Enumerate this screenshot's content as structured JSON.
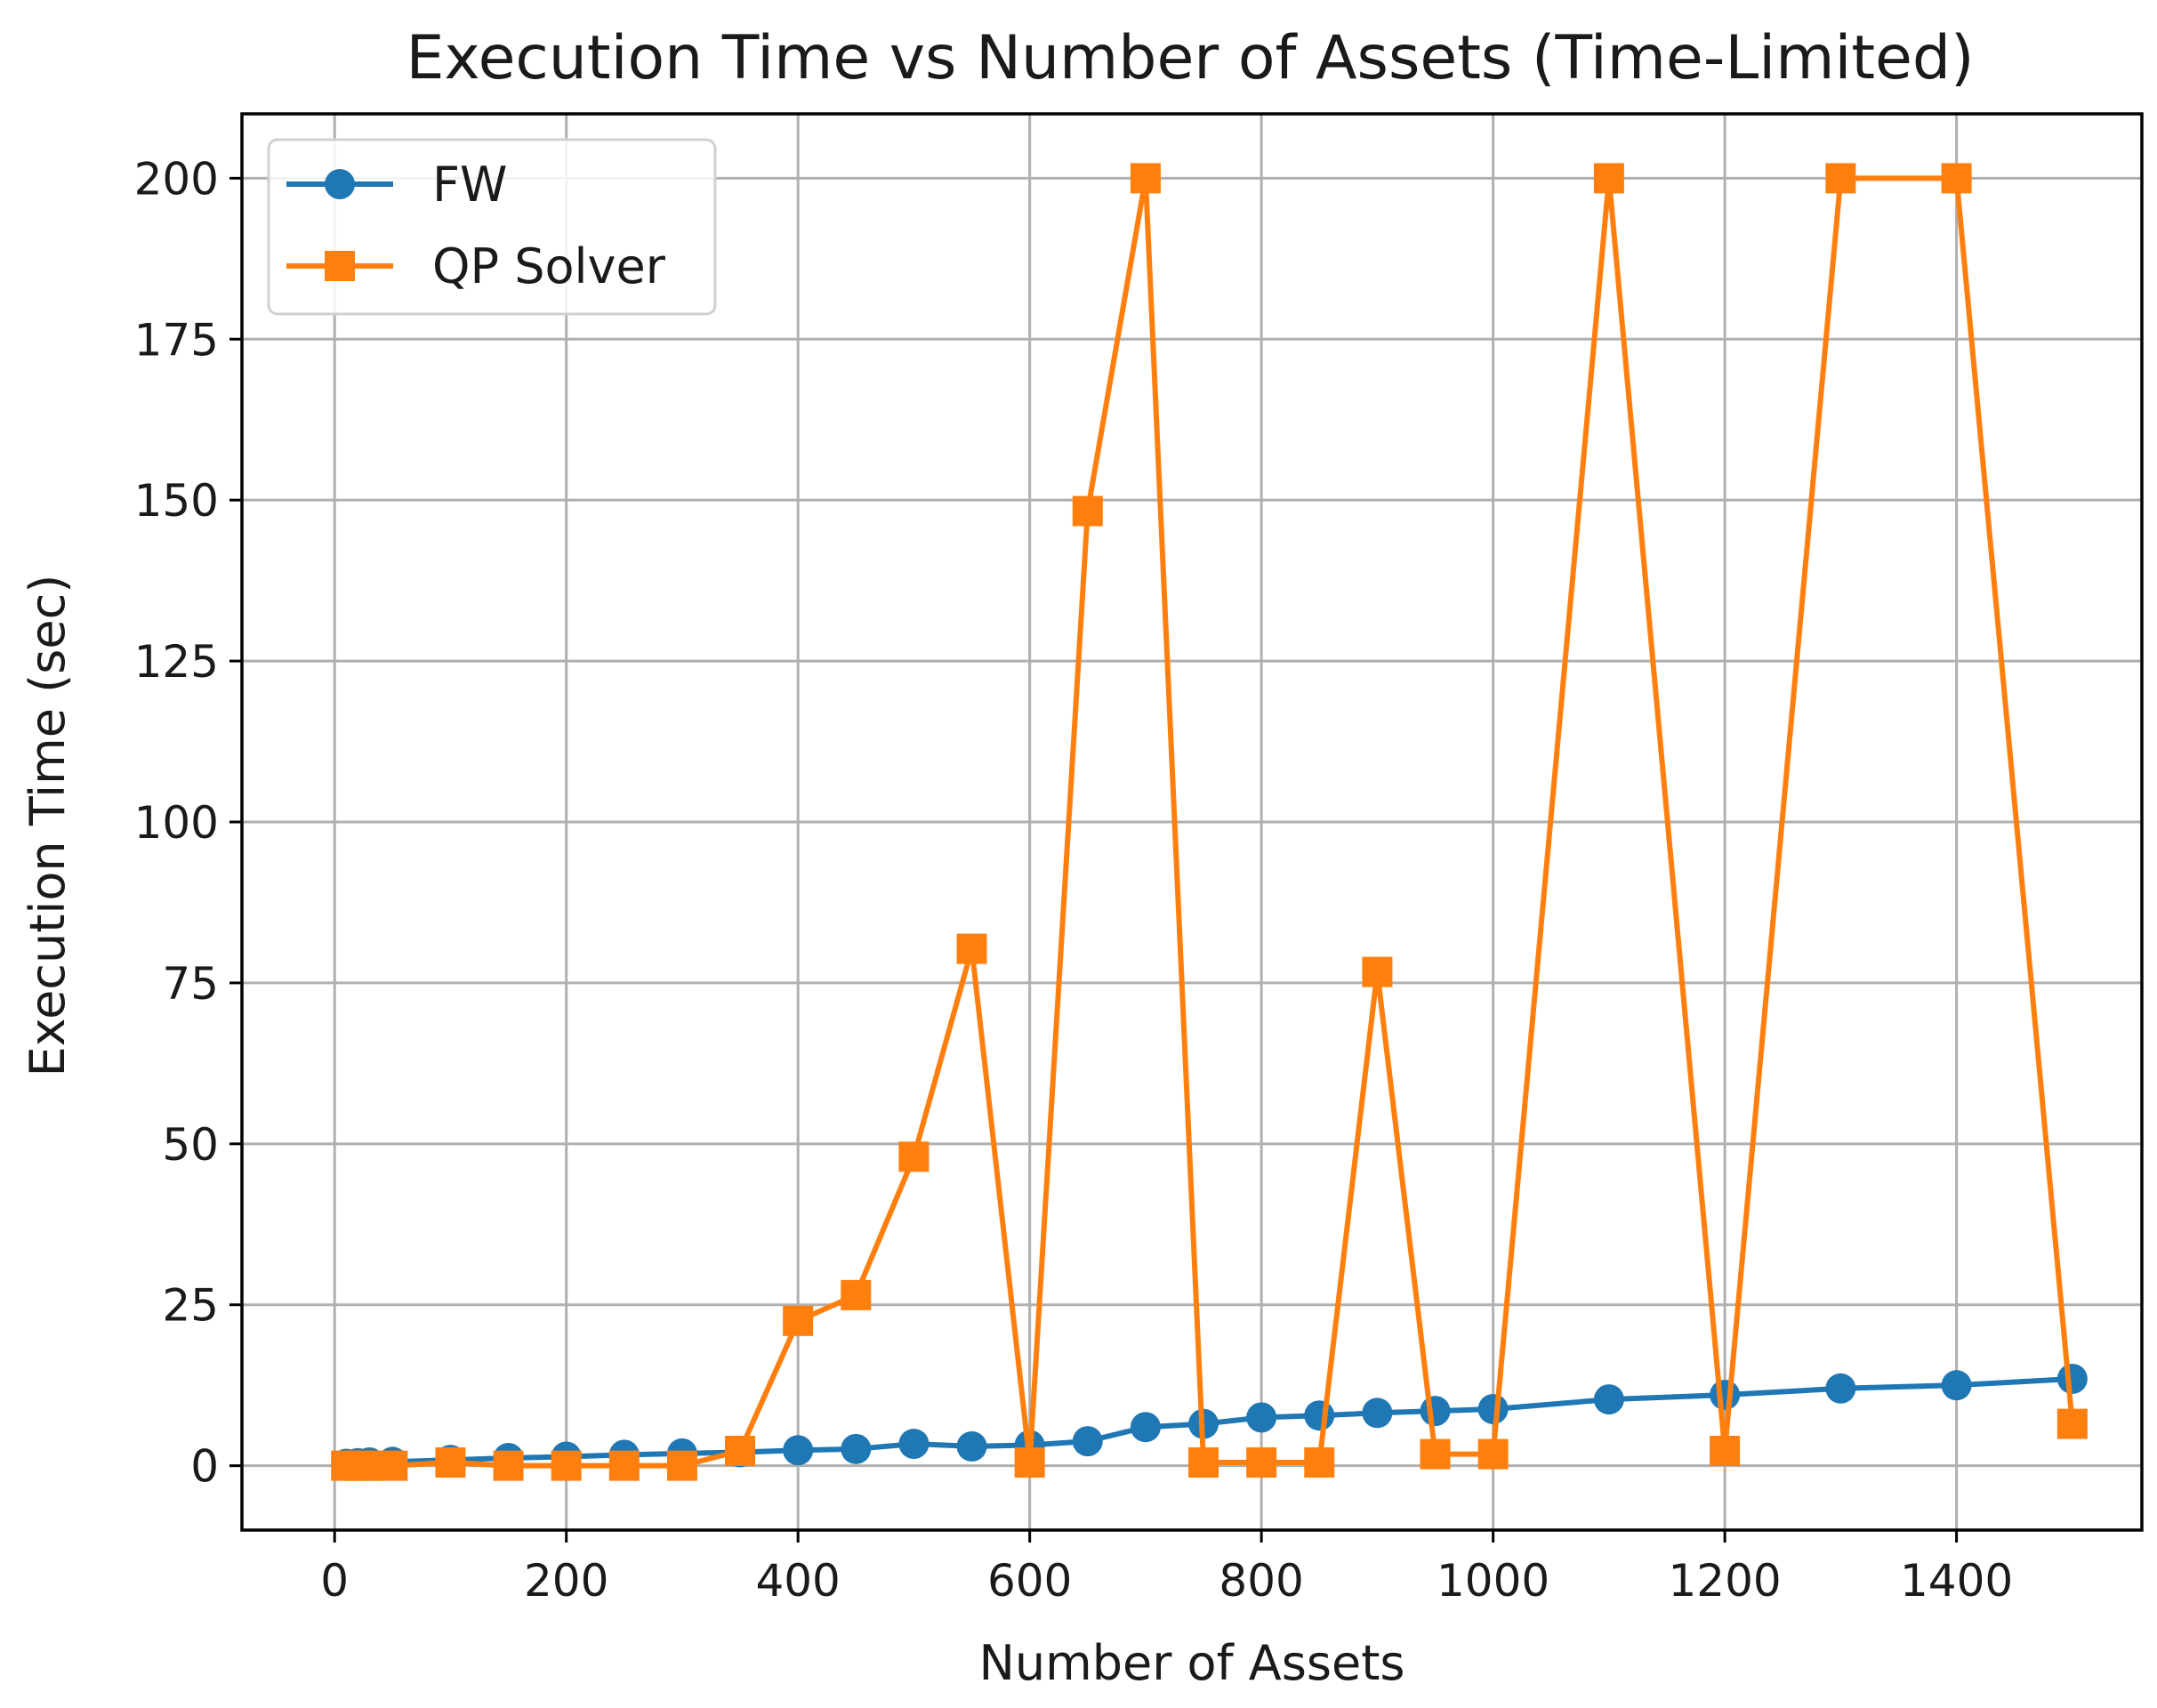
{
  "chart_data": {
    "type": "line",
    "title": "Execution Time vs Number of Assets (Time-Limited)",
    "xlabel": "Number of Assets",
    "ylabel": "Execution Time (sec)",
    "xlim": [
      -80,
      1560
    ],
    "ylim": [
      -10,
      210
    ],
    "xticks": [
      0,
      200,
      400,
      600,
      800,
      1000,
      1200,
      1400
    ],
    "yticks": [
      0,
      25,
      50,
      75,
      100,
      125,
      150,
      175,
      200
    ],
    "grid": true,
    "legend_position": "top-left",
    "series": [
      {
        "name": "FW",
        "color": "#1f77b4",
        "marker": "circle",
        "x": [
          10,
          20,
          30,
          50,
          100,
          150,
          200,
          250,
          300,
          350,
          400,
          450,
          500,
          550,
          600,
          650,
          700,
          750,
          800,
          850,
          900,
          950,
          1000,
          1100,
          1200,
          1300,
          1400,
          1500
        ],
        "y": [
          0.3,
          0.4,
          0.5,
          0.6,
          0.9,
          1.2,
          1.4,
          1.7,
          1.9,
          2.1,
          2.4,
          2.6,
          3.4,
          3.0,
          3.2,
          3.8,
          6.0,
          6.5,
          7.5,
          7.8,
          8.2,
          8.5,
          8.8,
          10.3,
          11.0,
          12.0,
          12.5,
          13.5
        ]
      },
      {
        "name": "QP Solver",
        "color": "#ff7f0e",
        "marker": "square",
        "x": [
          10,
          20,
          30,
          50,
          100,
          150,
          200,
          250,
          300,
          350,
          400,
          450,
          500,
          550,
          600,
          650,
          700,
          750,
          800,
          850,
          900,
          950,
          1000,
          1100,
          1200,
          1300,
          1400,
          1500
        ],
        "y": [
          0,
          0,
          0,
          0,
          0.5,
          0,
          0,
          0,
          0,
          2.3,
          22.5,
          26.5,
          48.0,
          80.3,
          0.5,
          148.3,
          200.0,
          0.5,
          0.5,
          0.5,
          76.7,
          1.8,
          1.8,
          200.0,
          2.3,
          200.0,
          200.0,
          6.5
        ]
      }
    ]
  }
}
